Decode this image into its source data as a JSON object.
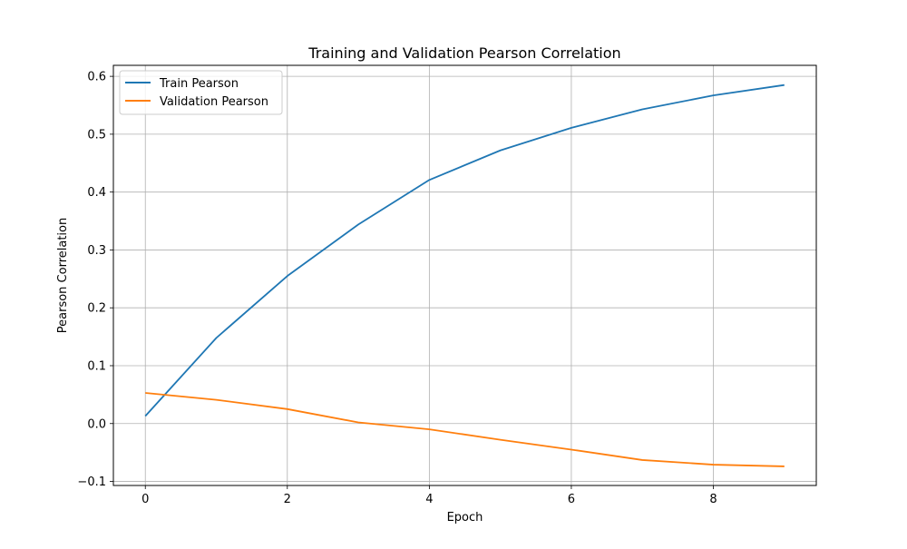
{
  "chart_data": {
    "type": "line",
    "title": "Training and Validation Pearson Correlation",
    "xlabel": "Epoch",
    "ylabel": "Pearson Correlation",
    "x": [
      0,
      1,
      2,
      3,
      4,
      5,
      6,
      7,
      8,
      9
    ],
    "xlim": [
      -0.45,
      9.45
    ],
    "ylim": [
      -0.107,
      0.619
    ],
    "xticks": [
      0,
      2,
      4,
      6,
      8
    ],
    "yticks": [
      -0.1,
      0.0,
      0.1,
      0.2,
      0.3,
      0.4,
      0.5,
      0.6
    ],
    "xtick_labels": [
      "0",
      "2",
      "4",
      "6",
      "8"
    ],
    "ytick_labels": [
      "−0.1",
      "0.0",
      "0.1",
      "0.2",
      "0.3",
      "0.4",
      "0.5",
      "0.6"
    ],
    "grid": true,
    "legend_position": "top-left",
    "series": [
      {
        "name": "Train Pearson",
        "color": "#1f77b4",
        "values": [
          0.013,
          0.148,
          0.255,
          0.344,
          0.421,
          0.472,
          0.511,
          0.543,
          0.567,
          0.585
        ]
      },
      {
        "name": "Validation Pearson",
        "color": "#ff7f0e",
        "values": [
          0.053,
          0.041,
          0.025,
          0.002,
          -0.01,
          -0.028,
          -0.045,
          -0.063,
          -0.071,
          -0.074
        ]
      }
    ]
  }
}
